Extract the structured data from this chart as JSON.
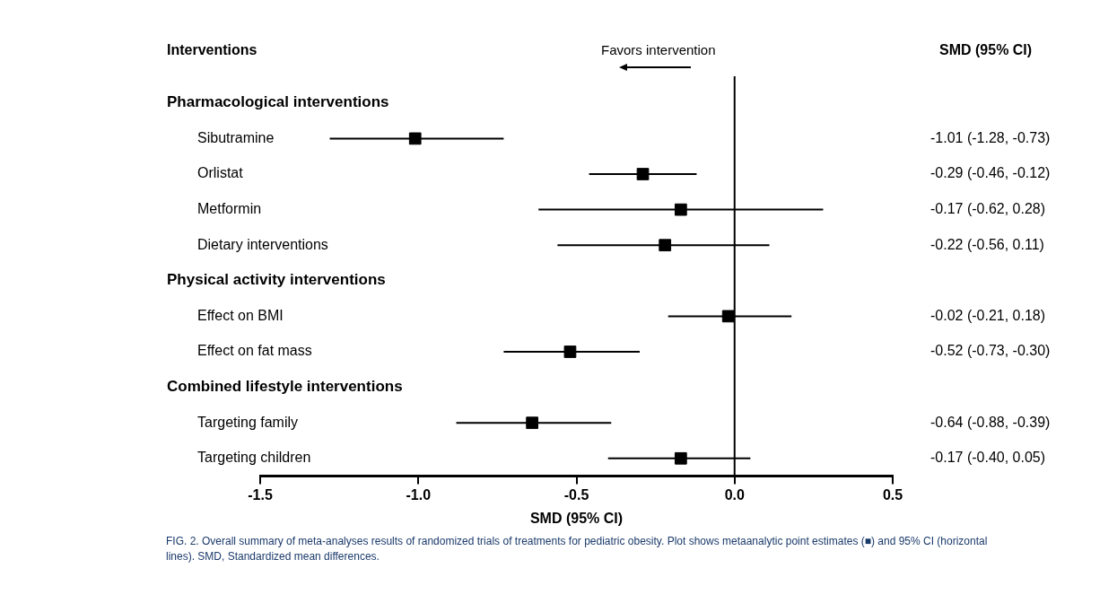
{
  "chart_data": {
    "type": "scatter",
    "orientation": "horizontal",
    "marker": "square",
    "grid": false,
    "legend": false,
    "xlabel": "SMD (95% CI)",
    "categories": [
      "Pharmacological interventions",
      "Sibutramine",
      "Orlistat",
      "Metformin",
      "Dietary interventions",
      "Physical activity interventions",
      "Effect on BMI",
      "Effect on fat mass",
      "Combined lifestyle interventions",
      "Targeting family",
      "Targeting children"
    ],
    "values": [
      null,
      -1.01,
      -0.29,
      -0.17,
      -0.22,
      null,
      -0.02,
      -0.52,
      null,
      -0.64,
      -0.17
    ],
    "errors": [
      null,
      [
        -1.28,
        -0.73
      ],
      [
        -0.46,
        -0.12
      ],
      [
        -0.62,
        0.28
      ],
      [
        -0.56,
        0.11
      ],
      null,
      [
        -0.21,
        0.18
      ],
      [
        -0.73,
        -0.3
      ],
      null,
      [
        -0.88,
        -0.39
      ],
      [
        -0.4,
        0.05
      ]
    ],
    "value_labels": [
      null,
      "-1.01 (-1.28, -0.73)",
      "-0.29 (-0.46, -0.12)",
      "-0.17 (-0.62, 0.28)",
      "-0.22 (-0.56, 0.11)",
      null,
      "-0.02 (-0.21, 0.18)",
      "-0.52 (-0.73, -0.30)",
      null,
      "-0.64 (-0.88, -0.39)",
      "-0.17 (-0.40, 0.05)"
    ],
    "color": "#000000",
    "xlim": [
      -1.5,
      0.5
    ],
    "xticks": [
      {
        "value": -1.5,
        "label": "-1.5"
      },
      {
        "value": -1,
        "label": "-1.0"
      },
      {
        "value": -0.5,
        "label": "-0.5"
      },
      {
        "value": 0,
        "label": "0.0"
      },
      {
        "value": 0.5,
        "label": "0.5"
      }
    ],
    "ref_lines": [
      {
        "axis": "x",
        "value": 0,
        "color": "#000000"
      }
    ],
    "annotations": [
      "Interventions",
      "Favors intervention",
      "SMD (95% CI)",
      "FIG. 2. Overall summary of meta-analyses results of randomized trials of treatments for pediatric obesity. Plot shows metaanalytic point estimates (■) and 95% CI (horizontal lines). SMD, Standardized mean differences."
    ]
  }
}
